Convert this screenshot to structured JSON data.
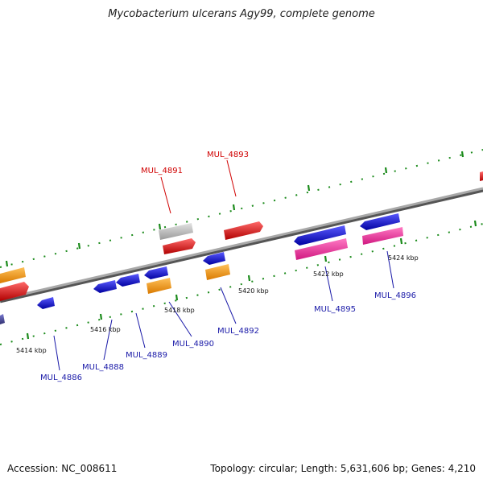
{
  "title": "Mycobacterium ulcerans Agy99, complete genome",
  "footer": {
    "accession": "Accession: NC_008611",
    "topology": "Topology: circular; Length: 5,631,606 bp; Genes: 4,210"
  },
  "ticks": [
    "5414 kbp",
    "5416 kbp",
    "5418 kbp",
    "5420 kbp",
    "5422 kbp",
    "5424 kbp"
  ],
  "genes": {
    "red": [
      "MUL_4891",
      "MUL_4893"
    ],
    "blue": [
      "MUL_4886",
      "MUL_4888",
      "MUL_4889",
      "MUL_4890",
      "MUL_4892",
      "MUL_4895",
      "MUL_4896"
    ]
  },
  "colors": {
    "forward_cds": "#e8000b",
    "reverse_cds": "#1010d0",
    "orange": "#ff9a00",
    "pink": "#ff2f9a",
    "gray": "#bdbdbd",
    "backbone": "#808080",
    "tickmark": "#1a8a1a",
    "label_blue": "#1a1aa8",
    "label_red": "#d00000"
  }
}
